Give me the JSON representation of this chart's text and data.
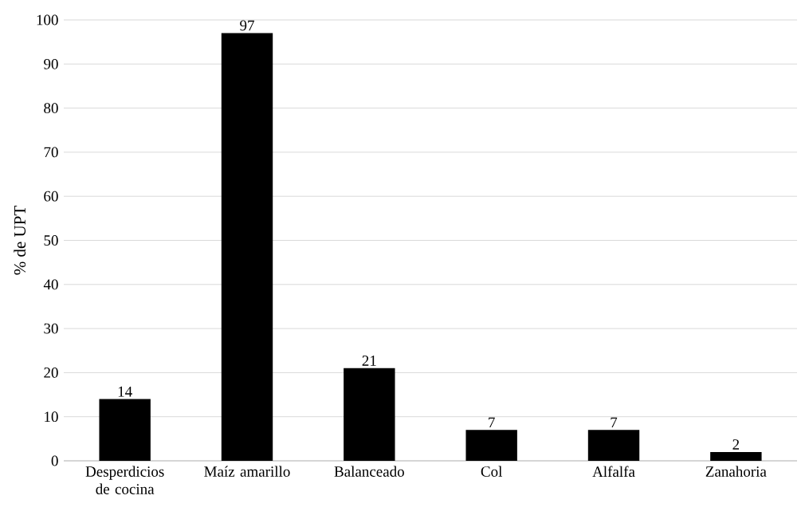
{
  "chart_data": {
    "type": "bar",
    "ylabel": "% de UPT",
    "categories": [
      "Desperdicios de cocina",
      "Maíz amarillo",
      "Balanceado",
      "Col",
      "Alfalfa",
      "Zanahoria"
    ],
    "values": [
      14,
      97,
      21,
      7,
      7,
      2
    ],
    "color": "#000000",
    "ylim": [
      0,
      100
    ],
    "yticks": [
      0,
      10,
      20,
      30,
      40,
      50,
      60,
      70,
      80,
      90,
      100
    ],
    "grid": "y",
    "data_labels": true
  }
}
